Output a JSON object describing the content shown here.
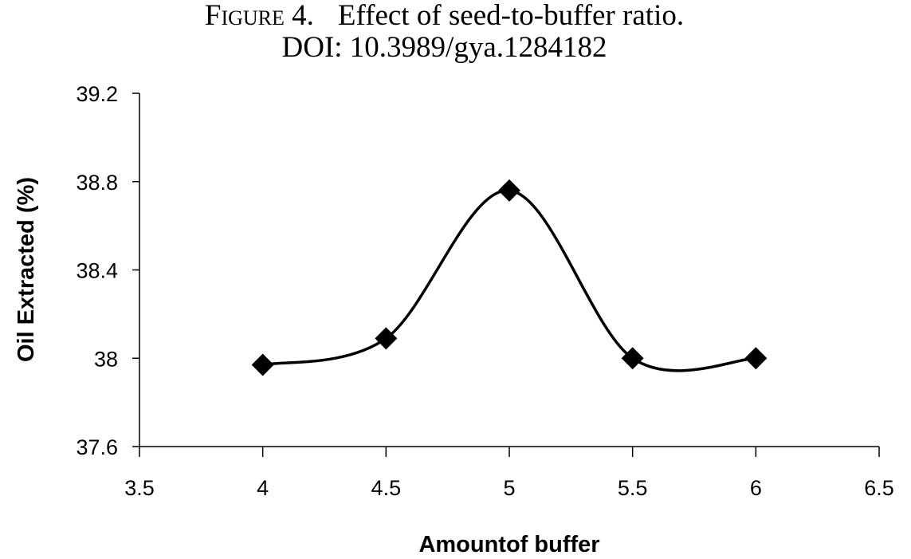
{
  "caption": {
    "figure_label": "Figure 4.",
    "figure_title": "Effect of seed-to-buffer ratio.",
    "doi": "DOI: 10.3989/gya.1284182"
  },
  "chart_data": {
    "type": "line",
    "smooth": true,
    "marker": "diamond",
    "line_color": "#000000",
    "xlabel": "Amountof buffer",
    "ylabel": "Oil Extracted (%)",
    "xlim": [
      3.5,
      6.5
    ],
    "ylim": [
      37.6,
      39.2
    ],
    "xticks": [
      "3.5",
      "4",
      "4.5",
      "5",
      "5.5",
      "6",
      "6.5"
    ],
    "yticks": [
      "37.6",
      "38",
      "38.4",
      "38.8",
      "39.2"
    ],
    "grid": false,
    "x": [
      4,
      4.5,
      5,
      5.5,
      6
    ],
    "y": [
      37.97,
      38.09,
      38.76,
      38.0,
      38.0
    ]
  }
}
